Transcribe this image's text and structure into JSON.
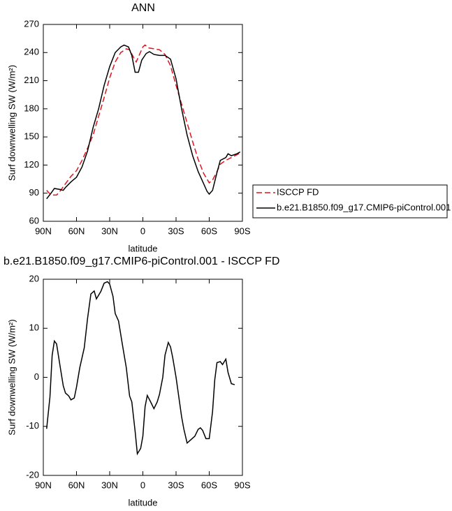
{
  "chart_data": [
    {
      "type": "line",
      "title": "ANN",
      "x_label": "latitude",
      "y_label": "Surf downwelling SW (W/m²)",
      "xlim": [
        90,
        -90
      ],
      "ylim": [
        60,
        270
      ],
      "xticks": [
        {
          "value": 90,
          "label": "90N"
        },
        {
          "value": 60,
          "label": "60N"
        },
        {
          "value": 30,
          "label": "30N"
        },
        0,
        {
          "value": -30,
          "label": "30S"
        },
        {
          "value": -60,
          "label": "60S"
        },
        {
          "value": -90,
          "label": "90S"
        }
      ],
      "yticks": [
        60,
        90,
        120,
        150,
        180,
        210,
        240,
        270
      ],
      "legend": "outside-right",
      "series": [
        {
          "name": "ISCCP FD",
          "color": "#e0141e",
          "line_style": "dashed",
          "x": [
            87,
            83,
            78,
            75,
            70,
            65,
            60,
            55,
            50,
            45,
            40,
            35,
            30,
            25,
            20,
            15,
            12,
            8,
            6,
            3,
            0,
            -2,
            -5,
            -10,
            -15,
            -20,
            -25,
            -30,
            -35,
            -40,
            -45,
            -50,
            -55,
            -60,
            -63,
            -67,
            -70,
            -75,
            -80,
            -85,
            -88
          ],
          "values": [
            93,
            88,
            88,
            92,
            100,
            108,
            114,
            125,
            138,
            152,
            172,
            192,
            213,
            230,
            240,
            244,
            243,
            234,
            230,
            238,
            246,
            248,
            245,
            244,
            243,
            238,
            226,
            205,
            185,
            165,
            145,
            126,
            111,
            101,
            104,
            113,
            121,
            125,
            128,
            131,
            133
          ]
        },
        {
          "name": "b.e21.B1850.f09_g17.CMIP6-piControl.001",
          "color": "#000000",
          "line_style": "solid",
          "x": [
            87,
            83,
            80,
            75,
            72,
            70,
            65,
            60,
            55,
            50,
            45,
            40,
            35,
            30,
            25,
            20,
            17,
            13,
            10,
            7,
            4,
            1,
            -3,
            -6,
            -10,
            -15,
            -20,
            -25,
            -30,
            -35,
            -40,
            -45,
            -50,
            -55,
            -58,
            -60,
            -63,
            -67,
            -70,
            -75,
            -77,
            -80,
            -85,
            -88
          ],
          "values": [
            84,
            90,
            95,
            94,
            93,
            96,
            102,
            107,
            118,
            135,
            160,
            180,
            205,
            225,
            240,
            246,
            248,
            246,
            237,
            219,
            219,
            232,
            239,
            241,
            238,
            237,
            237,
            233,
            212,
            180,
            152,
            130,
            113,
            100,
            92,
            89,
            93,
            112,
            125,
            128,
            132,
            130,
            132,
            134
          ]
        }
      ]
    },
    {
      "type": "line",
      "title": "b.e21.B1850.f09_g17.CMIP6-piControl.001 - ISCCP FD",
      "x_label": "latitude",
      "y_label": "Surf downwelling SW (W/m²)",
      "xlim": [
        90,
        -90
      ],
      "ylim": [
        -20,
        20
      ],
      "xticks": [
        {
          "value": 90,
          "label": "90N"
        },
        {
          "value": 60,
          "label": "60N"
        },
        {
          "value": 30,
          "label": "30N"
        },
        0,
        {
          "value": -30,
          "label": "30S"
        },
        {
          "value": -60,
          "label": "60S"
        },
        {
          "value": -90,
          "label": "90S"
        }
      ],
      "yticks": [
        -20,
        -10,
        0,
        10,
        20
      ],
      "series": [
        {
          "color": "#000000",
          "line_style": "solid",
          "x": [
            87,
            84,
            82,
            80,
            78,
            75,
            72,
            70,
            67,
            65,
            62,
            60,
            57,
            53,
            50,
            47,
            44,
            42,
            38,
            35,
            32,
            30,
            27,
            25,
            22,
            18,
            15,
            12,
            10,
            7,
            5,
            2,
            0,
            -2,
            -4,
            -7,
            -10,
            -13,
            -15,
            -18,
            -20,
            -23,
            -25,
            -27,
            -30,
            -35,
            -37,
            -40,
            -43,
            -47,
            -50,
            -52,
            -54,
            -57,
            -60,
            -63,
            -65,
            -67,
            -70,
            -72,
            -75,
            -77,
            -80,
            -83
          ],
          "values": [
            -10.5,
            -4,
            4.5,
            7.4,
            6.8,
            2.5,
            -1.7,
            -3.2,
            -3.8,
            -4.6,
            -4.2,
            -2,
            2,
            6,
            12,
            17,
            17.6,
            16,
            17.5,
            19.2,
            19.5,
            19,
            16.5,
            13,
            11.5,
            6,
            2,
            -3.8,
            -5,
            -11,
            -15.6,
            -14.5,
            -12,
            -6,
            -3.7,
            -5,
            -6.4,
            -5,
            -3.5,
            0,
            4.5,
            7.1,
            6.2,
            4,
            0,
            -8,
            -10.5,
            -13.4,
            -12.8,
            -12,
            -10.6,
            -10.3,
            -10.8,
            -12.5,
            -12.5,
            -7,
            -0.5,
            3,
            3.2,
            2.6,
            3.7,
            1,
            -1.3,
            -1.5
          ]
        }
      ]
    }
  ]
}
